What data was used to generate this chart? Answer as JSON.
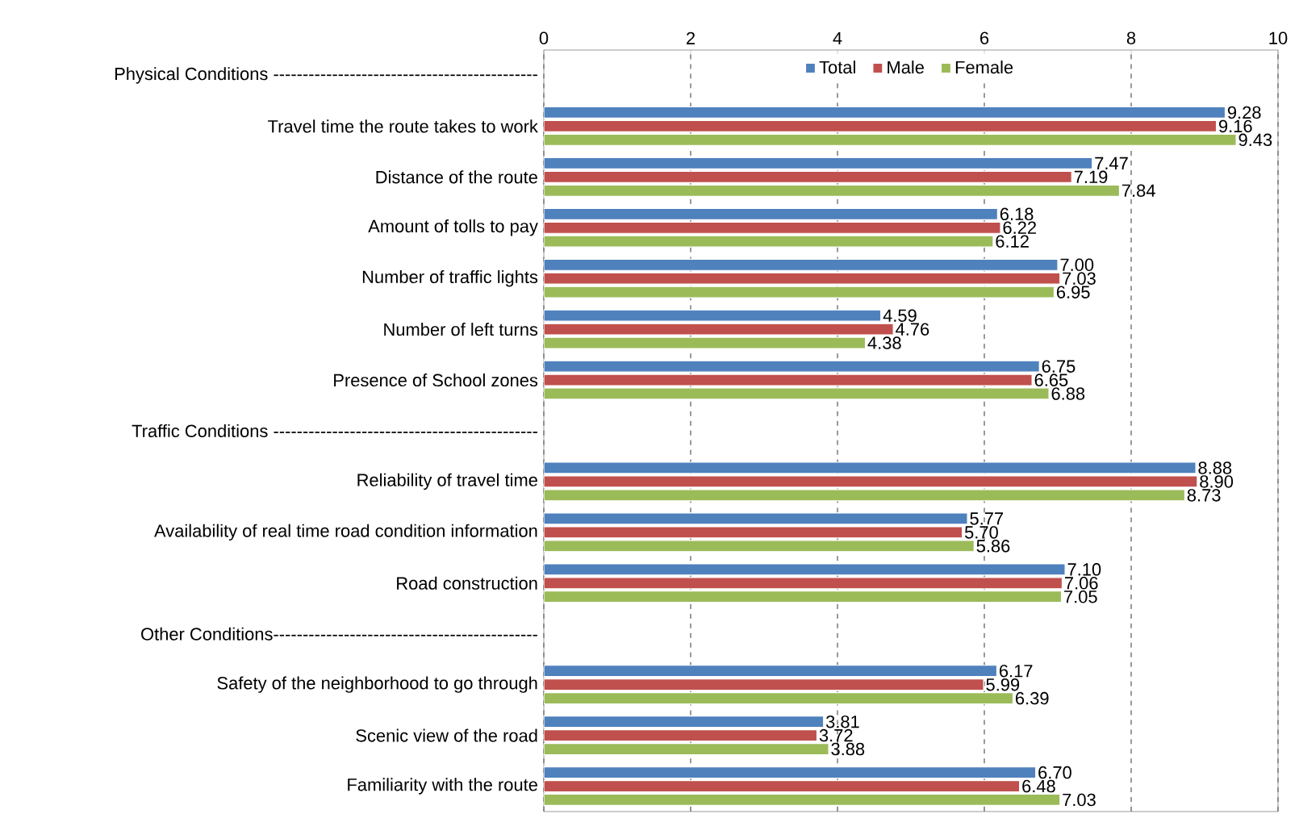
{
  "chart_data": {
    "type": "bar",
    "orientation": "horizontal",
    "categories": [
      "Physical Conditions ---------------------------------------------",
      "Travel time the route takes to work",
      "Distance of the route",
      "Amount of tolls to pay",
      "Number of traffic lights",
      "Number of left turns",
      "Presence of School zones",
      "Traffic Conditions ---------------------------------------------",
      "Reliability of travel time",
      "Availability of real time road condition information",
      "Road construction",
      "Other Conditions---------------------------------------------",
      "Safety of the neighborhood to go through",
      "Scenic view of the road",
      "Familiarity with the route"
    ],
    "series": [
      {
        "name": "Total",
        "color": "#4f81bd",
        "values": [
          null,
          9.28,
          7.47,
          6.18,
          7.0,
          4.59,
          6.75,
          null,
          8.88,
          5.77,
          7.1,
          null,
          6.17,
          3.81,
          6.7
        ],
        "value_labels": [
          null,
          "9.28",
          "7.47",
          "6.18",
          "7.00",
          "4.59",
          "6.75",
          null,
          "8.88",
          "5.77",
          "7.10",
          null,
          "6.17",
          "3.81",
          "6.70"
        ]
      },
      {
        "name": "Male",
        "color": "#c0504d",
        "values": [
          null,
          9.16,
          7.19,
          6.22,
          7.03,
          4.76,
          6.65,
          null,
          8.9,
          5.7,
          7.06,
          null,
          5.99,
          3.72,
          6.48
        ],
        "value_labels": [
          null,
          "9.16",
          "7.19",
          "6.22",
          "7.03",
          "4.76",
          "6.65",
          null,
          "8.90",
          "5.70",
          "7.06",
          null,
          "5.99",
          "3.72",
          "6.48"
        ]
      },
      {
        "name": "Female",
        "color": "#9bbb59",
        "values": [
          null,
          9.43,
          7.84,
          6.12,
          6.95,
          4.38,
          6.88,
          null,
          8.73,
          5.86,
          7.05,
          null,
          6.39,
          3.88,
          7.03
        ],
        "value_labels": [
          null,
          "9.43",
          "7.84",
          "6.12",
          "6.95",
          "4.38",
          "6.88",
          null,
          "8.73",
          "5.86",
          "7.05",
          null,
          "6.39",
          "3.88",
          "7.03"
        ]
      }
    ],
    "xlim": [
      0,
      10
    ],
    "xticks": [
      0,
      2,
      4,
      6,
      8,
      10
    ],
    "grid": "x",
    "legend": "top"
  }
}
